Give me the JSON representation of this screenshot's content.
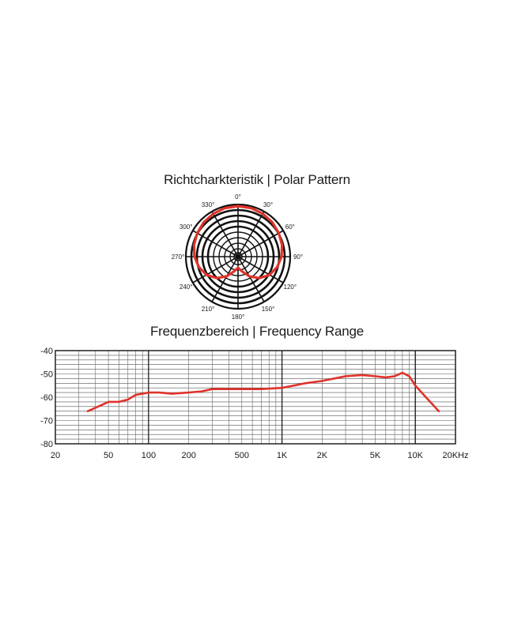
{
  "polar_title": "Richtcharkteristik | Polar Pattern",
  "freq_title": "Frequenzbereich | Frequency Range",
  "chart_data": [
    {
      "type": "polar",
      "title": "Richtcharkteristik | Polar Pattern",
      "angle_labels": [
        "0°",
        "30°",
        "60°",
        "90°",
        "120°",
        "150°",
        "180°",
        "210°",
        "240°",
        "270°",
        "300°",
        "330°"
      ],
      "angles": [
        0,
        30,
        60,
        90,
        120,
        150,
        180,
        210,
        240,
        270,
        300,
        330
      ],
      "pattern": "cardioid",
      "series": [
        {
          "color": "#e0322a",
          "theta": [
            0,
            15,
            30,
            45,
            60,
            75,
            90,
            105,
            120,
            135,
            150,
            165,
            180,
            195,
            210,
            225,
            240,
            255,
            270,
            285,
            300,
            315,
            330,
            345,
            360
          ],
          "r": [
            1.0,
            0.995,
            0.98,
            0.96,
            0.93,
            0.9,
            0.86,
            0.8,
            0.72,
            0.6,
            0.45,
            0.3,
            0.22,
            0.3,
            0.45,
            0.6,
            0.72,
            0.8,
            0.86,
            0.9,
            0.93,
            0.96,
            0.98,
            0.995,
            1.0
          ]
        }
      ],
      "line_color": "#e0322a"
    },
    {
      "type": "line",
      "title": "Frequenzbereich | Frequency Range",
      "xscale": "log",
      "xlim": [
        20,
        20000
      ],
      "ylim": [
        -80,
        -40
      ],
      "x_ticks": [
        20,
        50,
        100,
        200,
        500,
        1000,
        2000,
        5000,
        10000,
        20000
      ],
      "x_tick_labels": [
        "20",
        "50",
        "100",
        "200",
        "500",
        "1K",
        "2K",
        "5K",
        "10K",
        "20KHz"
      ],
      "y_ticks": [
        -40,
        -50,
        -60,
        -70,
        -80
      ],
      "y_tick_labels": [
        "-40",
        "-50",
        "-60",
        "-70",
        "-80"
      ],
      "grid": true,
      "line_color": "#e0322a",
      "series": [
        {
          "x": [
            35,
            42,
            50,
            60,
            70,
            80,
            90,
            100,
            120,
            150,
            200,
            250,
            300,
            400,
            500,
            700,
            1000,
            1500,
            2000,
            3000,
            4000,
            5000,
            6000,
            7000,
            8000,
            9000,
            10000,
            12000,
            15000
          ],
          "y": [
            -66,
            -64,
            -62,
            -62,
            -61,
            -59,
            -58.5,
            -58,
            -58,
            -58.5,
            -58,
            -57.5,
            -56.5,
            -56.5,
            -56.5,
            -56.5,
            -56,
            -54,
            -53,
            -51,
            -50.5,
            -51,
            -51.5,
            -51,
            -49.5,
            -51,
            -55,
            -60,
            -66
          ]
        }
      ]
    }
  ]
}
